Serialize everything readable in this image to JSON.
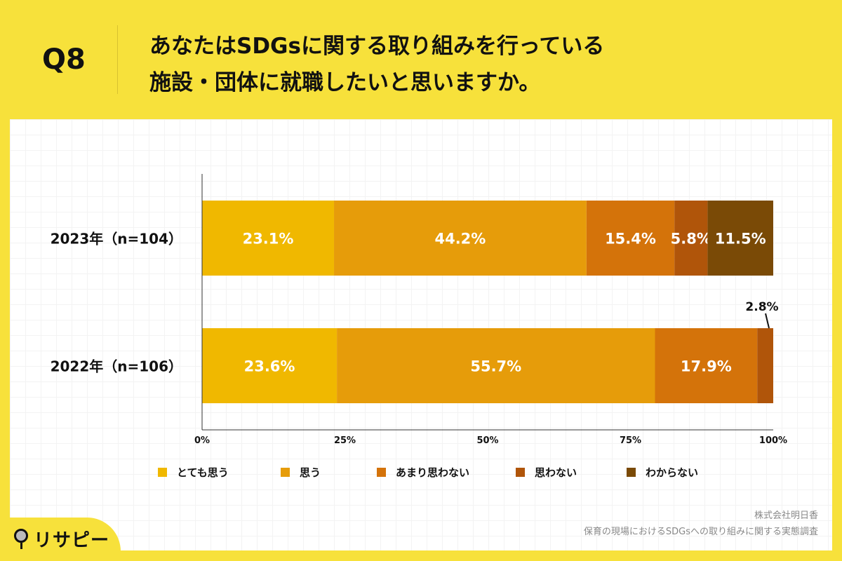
{
  "header": {
    "question": "Q8",
    "title_line1": "あなたはSDGsに関する取り組みを行っている",
    "title_line2": "施設・団体に就職したいと思いますか。"
  },
  "source": {
    "company": "株式会社明日香",
    "survey": "保育の現場におけるSDGsへの取り組みに関する実態調査"
  },
  "logo": {
    "text": "リサピー"
  },
  "chart_data": {
    "type": "bar",
    "orientation": "horizontal",
    "stacked": true,
    "categories": [
      "2023年（n=104）",
      "2022年（n=106）"
    ],
    "series": [
      {
        "name": "とても思う",
        "values": [
          23.1,
          23.6
        ],
        "color": "#F0B800"
      },
      {
        "name": "思う",
        "values": [
          44.2,
          55.7
        ],
        "color": "#E69C0A"
      },
      {
        "name": "あまり思わない",
        "values": [
          15.4,
          17.9
        ],
        "color": "#D4730A"
      },
      {
        "name": "思わない",
        "values": [
          5.8,
          2.8
        ],
        "color": "#B0550A"
      },
      {
        "name": "わからない",
        "values": [
          11.5,
          0
        ],
        "color": "#7A4A06"
      }
    ],
    "xlim": [
      0,
      100
    ],
    "xticks": [
      "0%",
      "25%",
      "50%",
      "75%",
      "100%"
    ],
    "legend": "bottom"
  }
}
